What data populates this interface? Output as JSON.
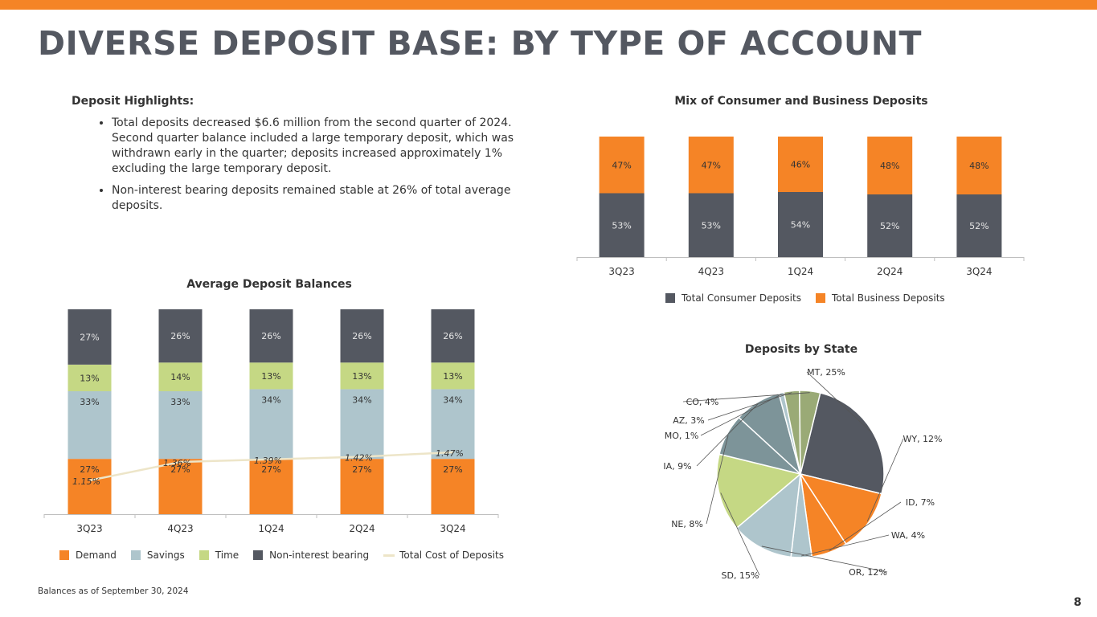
{
  "title": "DIVERSE DEPOSIT BASE: BY TYPE OF ACCOUNT",
  "highlights": {
    "heading": "Deposit Highlights:",
    "bullets": [
      "Total deposits decreased $6.6 million from the second quarter of 2024. Second quarter balance included a large temporary deposit, which was withdrawn early in the quarter; deposits increased approximately 1% excluding the large temporary deposit.",
      "Non-interest bearing deposits remained stable at 26% of total average deposits."
    ]
  },
  "footnote": "Balances as of September 30, 2024",
  "page_number": "8",
  "colors": {
    "orange": "#F58426",
    "dark": "#545861",
    "light_blue": "#AEC5CC",
    "light_green": "#C5D884",
    "teal_gray": "#7D9499",
    "olive_green": "#9AAA76",
    "line": "#EDE5C8"
  },
  "chart_data": [
    {
      "type": "bar",
      "stacked": true,
      "title": "Mix of Consumer and Business Deposits",
      "categories": [
        "3Q23",
        "4Q23",
        "1Q24",
        "2Q24",
        "3Q24"
      ],
      "series": [
        {
          "name": "Total Consumer Deposits",
          "values": [
            53,
            53,
            54,
            52,
            52
          ],
          "labels": [
            "53%",
            "53%",
            "54%",
            "52%",
            "52%"
          ],
          "color": "#545861"
        },
        {
          "name": "Total Business Deposits",
          "values": [
            47,
            47,
            46,
            48,
            48
          ],
          "labels": [
            "47%",
            "47%",
            "46%",
            "48%",
            "48%"
          ],
          "color": "#F58426"
        }
      ],
      "ylim": [
        0,
        100
      ],
      "legend": "bottom"
    },
    {
      "type": "bar",
      "stacked": true,
      "title": "Average Deposit Balances",
      "categories": [
        "3Q23",
        "4Q23",
        "1Q24",
        "2Q24",
        "3Q24"
      ],
      "series": [
        {
          "name": "Demand",
          "values": [
            27,
            27,
            27,
            27,
            27
          ],
          "labels": [
            "27%",
            "27%",
            "27%",
            "27%",
            "27%"
          ],
          "color": "#F58426"
        },
        {
          "name": "Savings",
          "values": [
            33,
            33,
            34,
            34,
            34
          ],
          "labels": [
            "33%",
            "33%",
            "34%",
            "34%",
            "34%"
          ],
          "color": "#AEC5CC"
        },
        {
          "name": "Time",
          "values": [
            13,
            14,
            13,
            13,
            13
          ],
          "labels": [
            "13%",
            "14%",
            "13%",
            "13%",
            "13%"
          ],
          "color": "#C5D884"
        },
        {
          "name": "Non-interest bearing",
          "values": [
            27,
            26,
            26,
            26,
            26
          ],
          "labels": [
            "27%",
            "26%",
            "26%",
            "26%",
            "26%"
          ],
          "color": "#545861"
        }
      ],
      "line_series": {
        "name": "Total Cost of Deposits",
        "values": [
          1.15,
          1.36,
          1.39,
          1.42,
          1.47
        ],
        "labels": [
          "1.15%",
          "1.36%",
          "1.39%",
          "1.42%",
          "1.47%"
        ],
        "color": "#EDE5C8"
      },
      "ylim": [
        0,
        100
      ],
      "legend": "bottom"
    },
    {
      "type": "pie",
      "title": "Deposits by State",
      "slices": [
        {
          "label": "MT, 25%",
          "value": 25,
          "color": "#545861"
        },
        {
          "label": "WY, 12%",
          "value": 12,
          "color": "#F58426"
        },
        {
          "label": "ID, 7%",
          "value": 7,
          "color": "#F58426"
        },
        {
          "label": "WA, 4%",
          "value": 4,
          "color": "#AEC5CC"
        },
        {
          "label": "OR, 12%",
          "value": 12,
          "color": "#AEC5CC"
        },
        {
          "label": "SD, 15%",
          "value": 15,
          "color": "#C5D884"
        },
        {
          "label": "NE, 8%",
          "value": 8,
          "color": "#7D9499"
        },
        {
          "label": "IA, 9%",
          "value": 9,
          "color": "#7D9499"
        },
        {
          "label": "MO, 1%",
          "value": 1,
          "color": "#AEC5CC"
        },
        {
          "label": "AZ, 3%",
          "value": 3,
          "color": "#9AAA76"
        },
        {
          "label": "CO, 4%",
          "value": 4,
          "color": "#9AAA76"
        }
      ]
    }
  ]
}
